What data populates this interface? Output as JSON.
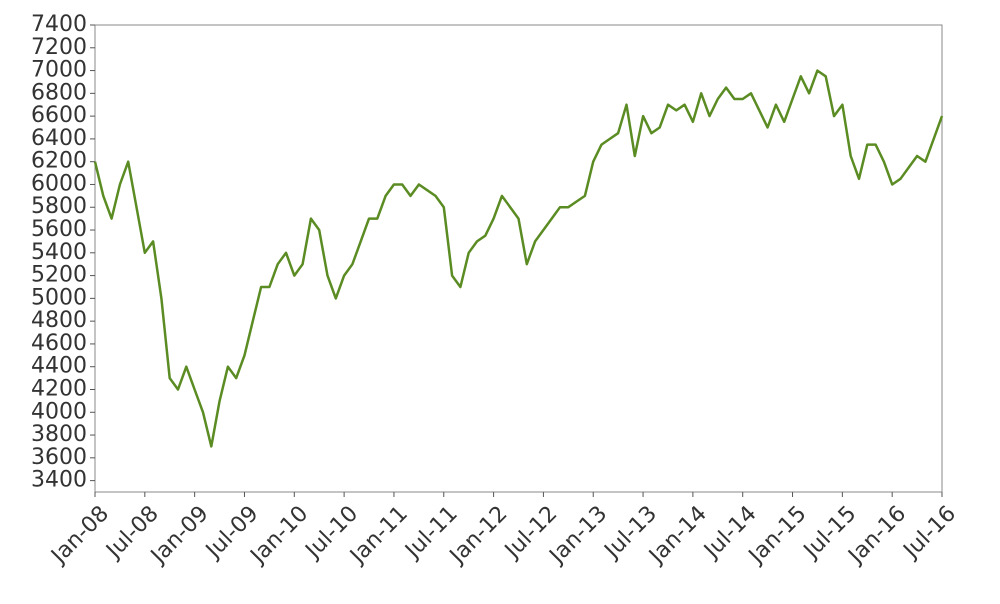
{
  "chart_data": {
    "type": "line",
    "x": [
      "2008-01",
      "2008-02",
      "2008-03",
      "2008-04",
      "2008-05",
      "2008-06",
      "2008-07",
      "2008-08",
      "2008-09",
      "2008-10",
      "2008-11",
      "2008-12",
      "2009-01",
      "2009-02",
      "2009-03",
      "2009-04",
      "2009-05",
      "2009-06",
      "2009-07",
      "2009-08",
      "2009-09",
      "2009-10",
      "2009-11",
      "2009-12",
      "2010-01",
      "2010-02",
      "2010-03",
      "2010-04",
      "2010-05",
      "2010-06",
      "2010-07",
      "2010-08",
      "2010-09",
      "2010-10",
      "2010-11",
      "2010-12",
      "2011-01",
      "2011-02",
      "2011-03",
      "2011-04",
      "2011-05",
      "2011-06",
      "2011-07",
      "2011-08",
      "2011-09",
      "2011-10",
      "2011-11",
      "2011-12",
      "2012-01",
      "2012-02",
      "2012-03",
      "2012-04",
      "2012-05",
      "2012-06",
      "2012-07",
      "2012-08",
      "2012-09",
      "2012-10",
      "2012-11",
      "2012-12",
      "2013-01",
      "2013-02",
      "2013-03",
      "2013-04",
      "2013-05",
      "2013-06",
      "2013-07",
      "2013-08",
      "2013-09",
      "2013-10",
      "2013-11",
      "2013-12",
      "2014-01",
      "2014-02",
      "2014-03",
      "2014-04",
      "2014-05",
      "2014-06",
      "2014-07",
      "2014-08",
      "2014-09",
      "2014-10",
      "2014-11",
      "2014-12",
      "2015-01",
      "2015-02",
      "2015-03",
      "2015-04",
      "2015-05",
      "2015-06",
      "2015-07",
      "2015-08",
      "2015-09",
      "2015-10",
      "2015-11",
      "2015-12",
      "2016-01",
      "2016-02",
      "2016-03",
      "2016-04",
      "2016-05",
      "2016-06",
      "2016-07"
    ],
    "series": [
      {
        "color": "#5b8c23",
        "values": [
          6200,
          5900,
          5700,
          6000,
          6200,
          5800,
          5400,
          5500,
          5000,
          4300,
          4200,
          4400,
          4200,
          4000,
          3700,
          4100,
          4400,
          4300,
          4500,
          4800,
          5100,
          5100,
          5300,
          5400,
          5200,
          5300,
          5700,
          5600,
          5200,
          5000,
          5200,
          5300,
          5500,
          5700,
          5700,
          5900,
          6000,
          6000,
          5900,
          6000,
          5950,
          5900,
          5800,
          5200,
          5100,
          5400,
          5500,
          5550,
          5700,
          5900,
          5800,
          5700,
          5300,
          5500,
          5600,
          5700,
          5800,
          5800,
          5850,
          5900,
          6200,
          6350,
          6400,
          6450,
          6700,
          6250,
          6600,
          6450,
          6500,
          6700,
          6650,
          6700,
          6550,
          6800,
          6600,
          6750,
          6850,
          6750,
          6750,
          6800,
          6650,
          6500,
          6700,
          6550,
          6750,
          6950,
          6800,
          7000,
          6950,
          6600,
          6700,
          6250,
          6050,
          6350,
          6350,
          6200,
          6000,
          6050,
          6150,
          6250,
          6200,
          6400,
          6600
        ]
      }
    ],
    "xlim": [
      "2008-01",
      "2016-07"
    ],
    "xticks": [
      {
        "value": "2008-01",
        "label": "Jan-08"
      },
      {
        "value": "2008-07",
        "label": "Jul-08"
      },
      {
        "value": "2009-01",
        "label": "Jan-09"
      },
      {
        "value": "2009-07",
        "label": "Jul-09"
      },
      {
        "value": "2010-01",
        "label": "Jan-10"
      },
      {
        "value": "2010-07",
        "label": "Jul-10"
      },
      {
        "value": "2011-01",
        "label": "Jan-11"
      },
      {
        "value": "2011-07",
        "label": "Jul-11"
      },
      {
        "value": "2012-01",
        "label": "Jan-12"
      },
      {
        "value": "2012-07",
        "label": "Jul-12"
      },
      {
        "value": "2013-01",
        "label": "Jan-13"
      },
      {
        "value": "2013-07",
        "label": "Jul-13"
      },
      {
        "value": "2014-01",
        "label": "Jan-14"
      },
      {
        "value": "2014-07",
        "label": "Jul-14"
      },
      {
        "value": "2015-01",
        "label": "Jan-15"
      },
      {
        "value": "2015-07",
        "label": "Jul-15"
      },
      {
        "value": "2016-01",
        "label": "Jan-16"
      },
      {
        "value": "2016-07",
        "label": "Jul-16"
      }
    ],
    "ylim": [
      3300,
      7400
    ],
    "yticks": [
      3400,
      3600,
      3800,
      4000,
      4200,
      4400,
      4600,
      4800,
      5000,
      5200,
      5400,
      5600,
      5800,
      6000,
      6200,
      6400,
      6600,
      6800,
      7000,
      7200,
      7400
    ],
    "grid": false
  }
}
